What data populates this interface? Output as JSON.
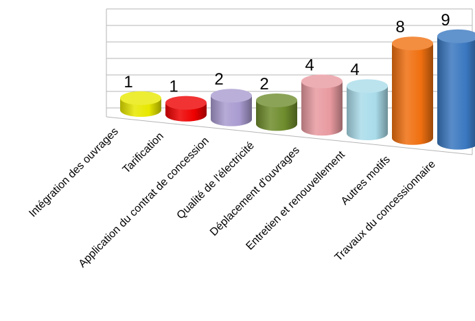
{
  "chart_data": {
    "type": "bar",
    "style": "3d-cylinder",
    "categories": [
      "Intégration des ouvrages",
      "Tarification",
      "Application du contrat de concession",
      "Qualité de l'électricité",
      "Déplacement d'ouvrages",
      "Entretien et renouvellement",
      "Autres motifs",
      "Travaux du concessionnaire"
    ],
    "values": [
      1,
      1,
      2,
      2,
      4,
      4,
      8,
      9
    ],
    "data_labels": [
      "1",
      "1",
      "2",
      "2",
      "4",
      "4",
      "8",
      "9"
    ],
    "colors": [
      "#e8e800",
      "#ee0000",
      "#a99bd0",
      "#6e8c2c",
      "#e89aa0",
      "#a9dcea",
      "#f07010",
      "#3a78c0"
    ],
    "ylim": [
      0,
      9
    ],
    "grid": true,
    "legend": "none",
    "title": "",
    "xlabel": "",
    "ylabel": ""
  }
}
